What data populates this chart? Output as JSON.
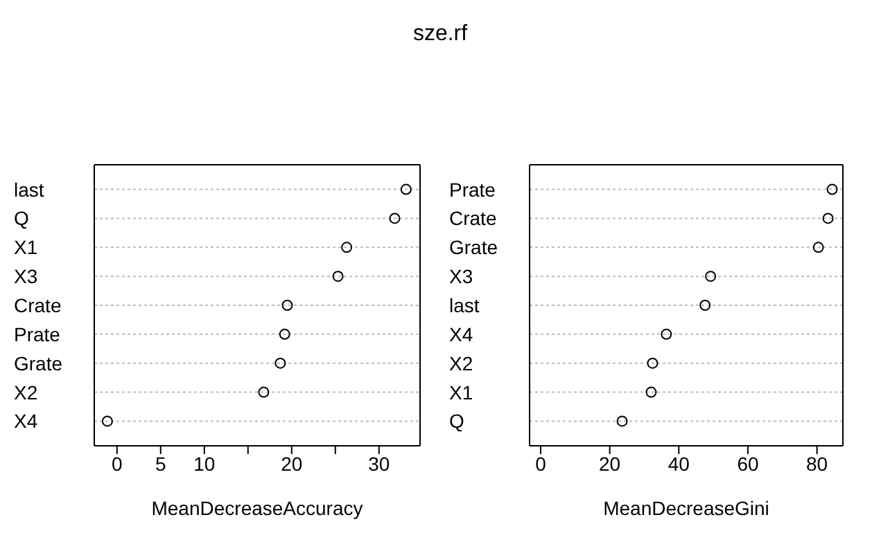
{
  "chart_data": [
    {
      "type": "scatter",
      "title": "sze.rf",
      "orientation": "horizontal",
      "xlabel": "MeanDecreaseAccuracy",
      "categories": [
        "last",
        "Q",
        "X1",
        "X3",
        "Crate",
        "Prate",
        "Grate",
        "X2",
        "X4"
      ],
      "values": [
        33.1,
        31.8,
        26.3,
        25.3,
        19.5,
        19.2,
        18.7,
        16.8,
        -1.1
      ],
      "color": "#000000",
      "marker": "circle",
      "grid": "y",
      "xlim": [
        -2.6,
        34.7
      ],
      "xticks": [
        0,
        5,
        10,
        {
          "value": 15,
          "label": null
        },
        20,
        {
          "value": 25,
          "label": null
        },
        30
      ]
    },
    {
      "type": "scatter",
      "orientation": "horizontal",
      "xlabel": "MeanDecreaseGini",
      "categories": [
        "Prate",
        "Crate",
        "Grate",
        "X3",
        "last",
        "X4",
        "X2",
        "X1",
        "Q"
      ],
      "values": [
        84.4,
        83.2,
        80.4,
        49.2,
        47.6,
        36.4,
        32.4,
        32.0,
        23.6
      ],
      "color": "#000000",
      "marker": "circle",
      "grid": "y",
      "xlim": [
        -3.2,
        87.5
      ],
      "xticks": [
        0,
        20,
        40,
        60,
        80
      ]
    }
  ]
}
